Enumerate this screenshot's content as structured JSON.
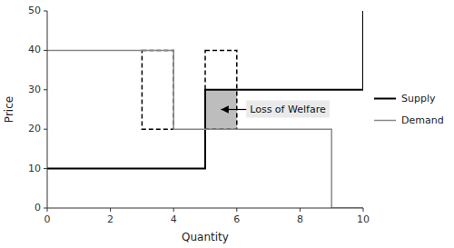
{
  "chart_data": {
    "type": "line",
    "xlabel": "Quantity",
    "ylabel": "Price",
    "xlim": [
      0,
      10
    ],
    "ylim": [
      0,
      50
    ],
    "xticks": [
      0,
      2,
      4,
      6,
      8,
      10
    ],
    "yticks": [
      0,
      10,
      20,
      30,
      40,
      50
    ],
    "grid": false,
    "legend": "right",
    "series": [
      {
        "name": "Supply",
        "color": "#000000",
        "x": [
          0,
          5,
          5,
          10,
          10
        ],
        "values": [
          10,
          10,
          30,
          30,
          50
        ]
      },
      {
        "name": "Demand",
        "color": "#888888",
        "x": [
          0,
          4,
          4,
          9,
          9,
          10
        ],
        "values": [
          40,
          40,
          20,
          20,
          0,
          0
        ]
      }
    ],
    "shapes": [
      {
        "type": "shaded",
        "x": 5,
        "y": 20,
        "w": 1,
        "h": 10,
        "color": "#999999"
      },
      {
        "type": "outline",
        "x": 3,
        "y": 20,
        "w": 1,
        "h": 20,
        "color": "#000000",
        "line_style": "dashed"
      },
      {
        "type": "outline",
        "x": 5,
        "y": 20,
        "w": 1,
        "h": 20,
        "color": "#000000",
        "line_style": "dashed"
      }
    ],
    "annotations": [
      {
        "text": "Loss of Welfare",
        "xy": [
          5.5,
          25
        ],
        "text_xy": [
          6.3,
          25
        ],
        "color": "#000000"
      }
    ]
  }
}
